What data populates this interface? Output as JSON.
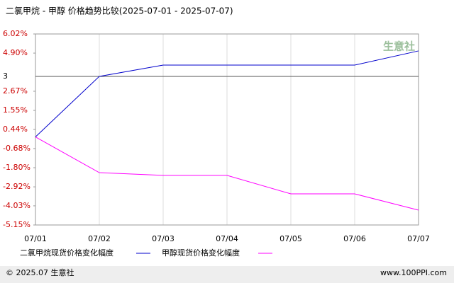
{
  "chart_data": {
    "type": "line",
    "title": "二氯甲烷 - 甲醇 价格趋势比较(2025-07-01 - 2025-07-07)",
    "categories": [
      "07/01",
      "07/02",
      "07/03",
      "07/04",
      "07/05",
      "07/06",
      "07/07"
    ],
    "series": [
      {
        "name": "二氯甲烷现货价格变化幅度",
        "color": "#0000cc",
        "values": [
          0,
          3.54,
          4.2,
          4.2,
          4.2,
          4.2,
          5.03
        ]
      },
      {
        "name": "甲醇现货价格变化幅度",
        "color": "#ff00ff",
        "values": [
          0,
          -2.09,
          -2.25,
          -2.25,
          -3.33,
          -3.33,
          -4.28
        ]
      }
    ],
    "ylim": [
      -5.15,
      6.02
    ],
    "yticks": [
      {
        "value": -5.15,
        "label": "-5.15%"
      },
      {
        "value": -4.03,
        "label": "-4.03%"
      },
      {
        "value": -2.92,
        "label": "-2.92%"
      },
      {
        "value": -1.8,
        "label": "-1.80%"
      },
      {
        "value": -0.68,
        "label": "-0.68%"
      },
      {
        "value": 0.44,
        "label": "0.44%"
      },
      {
        "value": 1.55,
        "label": "1.55%"
      },
      {
        "value": 2.67,
        "label": "2.67%"
      },
      {
        "value": 4.9,
        "label": "4.90%"
      },
      {
        "value": 6.02,
        "label": "6.02%"
      }
    ],
    "reference_line": {
      "value": 3.54,
      "label": "3"
    },
    "grid": true,
    "watermark": "生意社",
    "footer_left": "© 2025.07 生意社",
    "footer_right": "www.100PPI.com"
  }
}
